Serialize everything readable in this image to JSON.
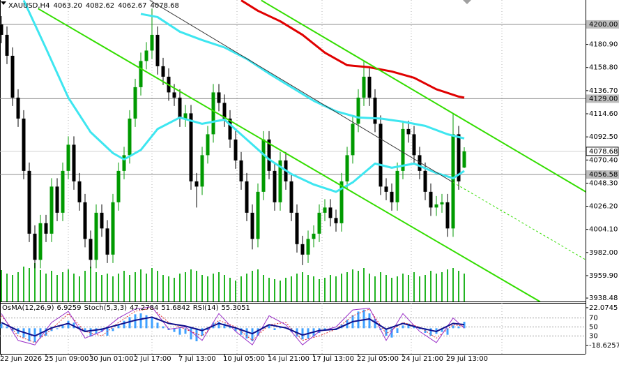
{
  "chart_data": [
    {
      "type": "candlestick",
      "title": "XAUUSD,H4",
      "header": [
        {
          "value": 4063.2,
          "label": "4063.20"
        },
        {
          "value": 4082.62,
          "label": "4082.62"
        },
        {
          "value": 4062.67,
          "label": "4062.67"
        },
        {
          "value": 4078.68,
          "label": "4078.68"
        }
      ],
      "categories": [
        "22 Jun 2026",
        null,
        null,
        null,
        null,
        null,
        null,
        null,
        "25 Jun 09:00",
        null,
        null,
        null,
        null,
        null,
        null,
        null,
        "30 Jun 01:00",
        null,
        null,
        null,
        null,
        null,
        null,
        null,
        "2 Jul 17:00",
        null,
        null,
        null,
        null,
        null,
        null,
        null,
        "7 Jul 13:00",
        null,
        null,
        null,
        null,
        null,
        null,
        null,
        "10 Jul 05:00",
        null,
        null,
        null,
        null,
        null,
        null,
        null,
        "14 Jul 21:00",
        null,
        null,
        null,
        null,
        null,
        null,
        null,
        "17 Jul 13:00",
        null,
        null,
        null,
        null,
        null,
        null,
        null,
        "22 Jul 05:00",
        null,
        null,
        null,
        null,
        null,
        null,
        null,
        "24 Jul 21:00",
        null,
        null,
        null,
        null,
        null,
        null,
        null,
        "29 Jul 13:00",
        null,
        null,
        null
      ],
      "open": [
        4200,
        4190,
        4170,
        4130,
        4110,
        4060,
        4000,
        3975,
        4010,
        4000,
        4045,
        4020,
        4060,
        4085,
        4050,
        4030,
        3995,
        3975,
        4020,
        4005,
        3980,
        4030,
        4060,
        4075,
        4110,
        4140,
        4165,
        4175,
        4190,
        4160,
        4150,
        4135,
        4130,
        4110,
        4115,
        4050,
        4045,
        4075,
        4095,
        4135,
        4125,
        4110,
        4090,
        4070,
        4050,
        4020,
        3995,
        4040,
        4090,
        4060,
        4030,
        4070,
        4050,
        4020,
        3990,
        3980,
        3995,
        4000,
        4020,
        4025,
        4015,
        4010,
        4050,
        4075,
        4105,
        4130,
        4150,
        4130,
        4105,
        4045,
        4040,
        4030,
        4060,
        4100,
        4095,
        4075,
        4060,
        4040,
        4025,
        4028,
        4030,
        4005,
        4095,
        4063.2
      ],
      "high": [
        4208,
        4198,
        4178,
        4138,
        4118,
        4068,
        4008,
        4018,
        4018,
        4053,
        4053,
        4068,
        4093,
        4093,
        4058,
        4038,
        4003,
        4028,
        4028,
        4013,
        4038,
        4068,
        4083,
        4118,
        4148,
        4173,
        4183,
        4215,
        4198,
        4168,
        4158,
        4143,
        4138,
        4123,
        4123,
        4058,
        4083,
        4103,
        4143,
        4143,
        4133,
        4118,
        4098,
        4078,
        4058,
        4028,
        4048,
        4098,
        4098,
        4068,
        4078,
        4078,
        4058,
        4028,
        3998,
        4003,
        4008,
        4028,
        4033,
        4033,
        4023,
        4058,
        4083,
        4113,
        4138,
        4165,
        4158,
        4138,
        4113,
        4053,
        4048,
        4068,
        4108,
        4108,
        4103,
        4083,
        4068,
        4048,
        4036,
        4038,
        4038,
        4115,
        4103,
        4082.62
      ],
      "low": [
        4182,
        4162,
        4122,
        4102,
        4052,
        3992,
        3967,
        3967,
        3992,
        3992,
        4012,
        4012,
        4052,
        4042,
        4022,
        3987,
        3967,
        3967,
        3997,
        3972,
        3972,
        4022,
        4052,
        4067,
        4102,
        4132,
        4157,
        4167,
        4152,
        4142,
        4127,
        4122,
        4102,
        4102,
        4042,
        4025,
        4037,
        4067,
        4087,
        4117,
        4102,
        4082,
        4062,
        4042,
        4012,
        3985,
        3987,
        4032,
        4052,
        4022,
        4022,
        4042,
        4012,
        3982,
        3970,
        3972,
        3987,
        3992,
        4012,
        4007,
        4002,
        4002,
        4042,
        4067,
        4097,
        4122,
        4122,
        4097,
        4037,
        4032,
        4022,
        4022,
        4052,
        4087,
        4067,
        4052,
        4032,
        4017,
        4017,
        4020,
        3997,
        3997,
        4042,
        4062.67
      ],
      "close": [
        4190,
        4170,
        4130,
        4110,
        4060,
        4000,
        3975,
        4010,
        4000,
        4045,
        4020,
        4060,
        4085,
        4050,
        4030,
        3995,
        3975,
        4020,
        4005,
        3980,
        4030,
        4060,
        4075,
        4110,
        4140,
        4165,
        4175,
        4190,
        4160,
        4150,
        4135,
        4130,
        4110,
        4115,
        4050,
        4045,
        4075,
        4095,
        4135,
        4125,
        4110,
        4090,
        4070,
        4050,
        4020,
        3995,
        4040,
        4090,
        4060,
        4030,
        4070,
        4050,
        4020,
        3990,
        3980,
        3995,
        4000,
        4020,
        4025,
        4015,
        4010,
        4050,
        4075,
        4105,
        4130,
        4150,
        4130,
        4105,
        4045,
        4040,
        4030,
        4060,
        4100,
        4095,
        4075,
        4060,
        4040,
        4025,
        4028,
        4030,
        4005,
        4095,
        4050,
        4078.68
      ],
      "volume": [
        45,
        40,
        38,
        42,
        50,
        48,
        55,
        45,
        40,
        44,
        38,
        42,
        46,
        40,
        36,
        44,
        50,
        42,
        38,
        40,
        36,
        40,
        44,
        38,
        42,
        46,
        40,
        48,
        44,
        38,
        36,
        34,
        40,
        42,
        46,
        44,
        38,
        36,
        40,
        42,
        38,
        34,
        30,
        36,
        40,
        44,
        46,
        38,
        34,
        32,
        30,
        34,
        36,
        40,
        42,
        38,
        36,
        32,
        34,
        38,
        36,
        40,
        42,
        46,
        44,
        48,
        40,
        36,
        42,
        38,
        34,
        36,
        40,
        38,
        42,
        36,
        38,
        44,
        40,
        42,
        46,
        48,
        44,
        40
      ],
      "bull_color": "#009a00",
      "bear_color": "#000000",
      "volume_color": "#22b422",
      "ylim": [
        3935.2,
        4223.3
      ],
      "yticks": [
        {
          "value": 4180.9,
          "label": "4180.90"
        },
        {
          "value": 4158.8,
          "label": "4158.80"
        },
        {
          "value": 4136.7,
          "label": "4136.70"
        },
        {
          "value": 4114.6,
          "label": "4114.60"
        },
        {
          "value": 4092.5,
          "label": "4092.50"
        },
        {
          "value": 4070.4,
          "label": "4070.40"
        },
        {
          "value": 4048.3,
          "label": "4048.30"
        },
        {
          "value": 4026.2,
          "label": "4026.20"
        },
        {
          "value": 4004.1,
          "label": "4004.10"
        },
        {
          "value": 3982,
          "label": "3982.00"
        },
        {
          "value": 3959.9,
          "label": "3959.90"
        },
        {
          "value": 3938.48,
          "label": "3938.48"
        }
      ],
      "price_levels": [
        {
          "value": 4200,
          "label": "4200.00"
        },
        {
          "value": 4129,
          "label": "4129.00"
        },
        {
          "value": 4056.58,
          "label": "4056.58"
        }
      ],
      "bid": {
        "value": 4078.68,
        "label": "4078.68"
      },
      "overlays": [
        {
          "color": "#3ee6f0",
          "x": [
            4,
            8,
            12,
            16,
            20,
            22,
            25,
            28,
            32,
            36,
            40,
            44,
            48,
            52,
            56,
            60,
            63,
            67,
            70,
            74,
            78,
            81,
            83
          ],
          "values": [
            4223,
            4177,
            4130,
            4097,
            4077,
            4071,
            4080,
            4100,
            4111,
            4105,
            4109,
            4090,
            4071,
            4057,
            4047,
            4040,
            4049,
            4067,
            4063,
            4067,
            4058,
            4053,
            4060
          ]
        },
        {
          "color": "#3ee6f0",
          "x": [
            25,
            28,
            32,
            36,
            40,
            44,
            48,
            52,
            56,
            60,
            64,
            68,
            72,
            76,
            80,
            83
          ],
          "values": [
            4210,
            4207,
            4193,
            4185,
            4178,
            4167,
            4153,
            4140,
            4127,
            4117,
            4111,
            4110,
            4107,
            4103,
            4095,
            4091
          ]
        },
        {
          "color": "#e00000",
          "x": [
            43,
            46,
            50,
            54,
            58,
            62,
            66,
            70,
            74,
            78,
            82,
            83
          ],
          "values": [
            4223,
            4213,
            4203,
            4190,
            4173,
            4161,
            4159,
            4155,
            4149,
            4138,
            4131,
            4130
          ]
        }
      ],
      "trendlines": [
        {
          "color": "#33dd00",
          "x": [
            6.6,
            96.6
          ],
          "values": [
            4215,
            3935
          ]
        },
        {
          "color": "#33dd00",
          "x": [
            46.6,
            104.8
          ],
          "values": [
            4223,
            4040
          ]
        },
        {
          "color": "#333333",
          "x": [
            26.6,
            81
          ],
          "values": [
            4223,
            4049
          ]
        },
        {
          "color": "#33dd00",
          "dashed": true,
          "x": [
            81,
            104.8
          ],
          "values": [
            4049,
            3975
          ]
        }
      ]
    },
    {
      "type": "oscillator",
      "osma": {
        "name": "OsMA(12,26,9)",
        "color": "#3fa0ff",
        "values": [
          5,
          2,
          -3,
          -6,
          -10,
          -14,
          -15,
          -10,
          -8,
          -3,
          -1,
          3,
          8,
          6,
          2,
          -4,
          -9,
          -6,
          -4,
          -8,
          -3,
          4,
          8,
          12,
          15,
          16,
          14,
          12,
          6,
          2,
          -2,
          -4,
          -7,
          -6,
          -12,
          -14,
          -8,
          -2,
          6,
          7,
          5,
          1,
          -3,
          -7,
          -11,
          -14,
          -8,
          2,
          3,
          -2,
          1,
          0,
          -4,
          -9,
          -12,
          -11,
          -9,
          -5,
          -2,
          -2,
          -2,
          4,
          9,
          14,
          18,
          20,
          16,
          10,
          -2,
          -8,
          -10,
          -5,
          3,
          5,
          2,
          -1,
          -5,
          -8,
          -6,
          -4,
          -7,
          3,
          2,
          6.9259
        ],
        "ylim": [
          -27.5,
          27.25
        ],
        "yticks": [
          22.0745,
          -18.6257
        ]
      },
      "stoch": {
        "name": "Stoch(5,3,3)",
        "x": [
          0,
          3,
          6,
          9,
          12,
          15,
          18,
          21,
          24,
          27,
          30,
          33,
          36,
          39,
          42,
          45,
          48,
          51,
          54,
          57,
          60,
          63,
          66,
          69,
          72,
          75,
          78,
          81,
          83
        ],
        "main": {
          "color": "#9b30c8",
          "values": [
            80,
            20,
            10,
            60,
            85,
            25,
            40,
            70,
            90,
            95,
            45,
            50,
            20,
            80,
            40,
            10,
            75,
            55,
            10,
            40,
            50,
            88,
            92,
            20,
            80,
            40,
            15,
            70,
            47.2784
          ]
        },
        "signal": {
          "color": "#e03030",
          "values": [
            75,
            30,
            15,
            45,
            80,
            40,
            30,
            60,
            85,
            92,
            60,
            45,
            30,
            65,
            50,
            20,
            55,
            60,
            20,
            30,
            45,
            75,
            90,
            35,
            60,
            50,
            25,
            55,
            51.6842
          ]
        }
      },
      "rsi": {
        "name": "RSI(14)",
        "color": "#10108c",
        "x": [
          0,
          3,
          6,
          9,
          12,
          15,
          18,
          21,
          24,
          27,
          30,
          33,
          36,
          39,
          42,
          45,
          48,
          51,
          54,
          57,
          60,
          63,
          66,
          69,
          72,
          75,
          78,
          81,
          83
        ],
        "values": [
          60,
          42,
          30,
          48,
          58,
          40,
          45,
          55,
          65,
          72,
          58,
          52,
          42,
          58,
          48,
          35,
          55,
          48,
          32,
          42,
          45,
          62,
          68,
          45,
          58,
          48,
          40,
          58,
          55.3051
        ]
      },
      "ylim": [
        -10,
        103.8
      ],
      "yticks": [
        70,
        50,
        30
      ]
    }
  ]
}
